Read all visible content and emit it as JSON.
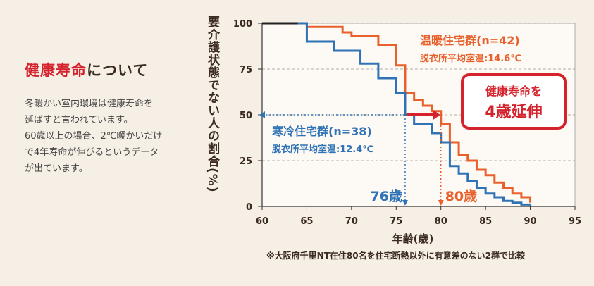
{
  "text": {
    "heading_highlight": "健康寿命",
    "heading_rest": "について",
    "desc_lines": [
      "冬暖かい室内環境は健康寿命を",
      "延ばすと言われています。",
      "60歳以上の場合、2℃暖かいだけ",
      "で4年寿命が伸びるというデータ",
      "が出ています。"
    ],
    "footnote": "※大阪府千里NT在住80名を住宅断熱以外に有意差のない2群で比較",
    "badge_line1": "健康寿命を",
    "badge_line2": "4歳延伸"
  },
  "colors": {
    "warm": "#e8612c",
    "cold": "#2f72b5",
    "black": "#222222",
    "red": "#d4232d",
    "grid": "#b9aea3",
    "panel": "#fdfaf5"
  },
  "chart_data": {
    "type": "line",
    "title": "",
    "xlabel": "年齢(歳)",
    "ylabel": "要介護状態でない人の割合(%)",
    "xlim": [
      60,
      95
    ],
    "ylim": [
      0,
      100
    ],
    "xticks": [
      60,
      65,
      70,
      75,
      80,
      85,
      90,
      95
    ],
    "yticks": [
      0,
      25,
      50,
      75,
      100
    ],
    "grid": "horizontal dashed",
    "baseline": {
      "x": [
        60,
        64
      ],
      "y": [
        100,
        100
      ]
    },
    "series": [
      {
        "name": "温暖住宅群(n=42)",
        "label_sub": "脱衣所平均室温:14.6℃",
        "x": [
          64,
          65,
          69,
          70,
          73,
          75,
          76,
          77,
          78,
          79,
          80,
          81,
          82,
          83,
          84,
          85,
          86,
          87,
          88,
          89,
          90
        ],
        "y": [
          100,
          98,
          95,
          93,
          88,
          77,
          62,
          58,
          55,
          52,
          45,
          35,
          28,
          25,
          20,
          17,
          13,
          10,
          7,
          5,
          2
        ]
      },
      {
        "name": "寒冷住宅群(n=38)",
        "label_sub": "脱衣所平均室温:12.4℃",
        "x": [
          64,
          65,
          68,
          71,
          73,
          75,
          76,
          77,
          79,
          80,
          81,
          82,
          83,
          84,
          85,
          86,
          87,
          88,
          89,
          90
        ],
        "y": [
          100,
          90,
          85,
          78,
          70,
          62,
          50,
          45,
          40,
          35,
          22,
          18,
          14,
          10,
          7,
          5,
          3,
          2,
          1,
          0
        ]
      }
    ],
    "annotations": [
      {
        "text": "76歳",
        "x": 76,
        "color": "cold"
      },
      {
        "text": "80歳",
        "x": 80,
        "color": "warm"
      }
    ],
    "arrow": {
      "from_x": 76,
      "to_x": 80,
      "y": 50
    }
  }
}
